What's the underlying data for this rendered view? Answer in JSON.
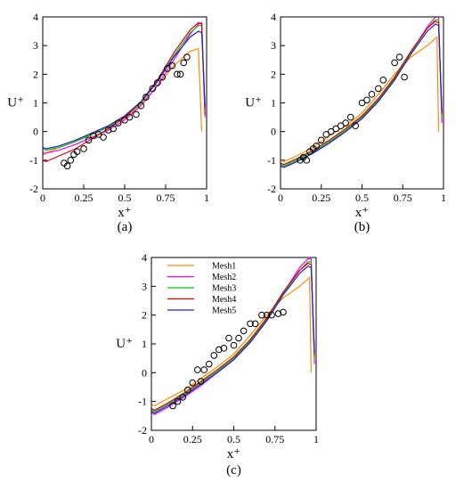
{
  "chart_data": [
    {
      "type": "line",
      "panel_label": "(a)",
      "xlabel": "x⁺",
      "ylabel": "U⁺",
      "xlim": [
        0,
        1
      ],
      "ylim": [
        -2,
        4
      ],
      "xticks": [
        "0",
        "0.25",
        "0.5",
        "0.75",
        "1"
      ],
      "yticks": [
        "-2",
        "-1",
        "0",
        "1",
        "2",
        "3",
        "4"
      ],
      "grid": false,
      "series": [
        {
          "name": "Mesh1",
          "color": "#ff8c00",
          "x": [
            0,
            0.02,
            0.1,
            0.2,
            0.3,
            0.4,
            0.5,
            0.6,
            0.7,
            0.8,
            0.9,
            0.95,
            0.97
          ],
          "y": [
            -0.7,
            -0.75,
            -0.55,
            -0.35,
            -0.05,
            0.2,
            0.45,
            0.95,
            1.6,
            2.3,
            2.8,
            2.9,
            0
          ]
        },
        {
          "name": "Mesh2",
          "color": "#ff00ff",
          "x": [
            0,
            0.02,
            0.1,
            0.2,
            0.3,
            0.4,
            0.5,
            0.6,
            0.7,
            0.8,
            0.9,
            0.95,
            0.97,
            0.99
          ],
          "y": [
            -0.8,
            -0.75,
            -0.65,
            -0.45,
            -0.2,
            0.05,
            0.4,
            0.9,
            1.6,
            2.5,
            3.4,
            3.75,
            3.8,
            0.5
          ]
        },
        {
          "name": "Mesh3",
          "color": "#00c800",
          "x": [
            0,
            0.02,
            0.1,
            0.2,
            0.3,
            0.4,
            0.5,
            0.6,
            0.7,
            0.8,
            0.9,
            0.95,
            0.97,
            0.99
          ],
          "y": [
            -0.6,
            -0.65,
            -0.55,
            -0.35,
            -0.1,
            0.15,
            0.5,
            1.0,
            1.75,
            2.65,
            3.45,
            3.7,
            3.7,
            0.8
          ]
        },
        {
          "name": "Mesh4",
          "color": "#e00000",
          "x": [
            0,
            0.02,
            0.1,
            0.2,
            0.3,
            0.4,
            0.5,
            0.6,
            0.7,
            0.8,
            0.9,
            0.95,
            0.97,
            0.99
          ],
          "y": [
            -1.0,
            -1.05,
            -0.85,
            -0.6,
            -0.25,
            0.1,
            0.5,
            1.05,
            1.8,
            2.75,
            3.55,
            3.8,
            3.75,
            0.6
          ]
        },
        {
          "name": "Mesh5",
          "color": "#2020e0",
          "x": [
            0,
            0.02,
            0.1,
            0.2,
            0.3,
            0.4,
            0.5,
            0.6,
            0.7,
            0.8,
            0.9,
            0.95,
            0.97,
            0.99
          ],
          "y": [
            -0.55,
            -0.6,
            -0.5,
            -0.3,
            -0.05,
            0.2,
            0.55,
            1.05,
            1.75,
            2.6,
            3.3,
            3.5,
            3.45,
            0.9
          ]
        }
      ],
      "markers": {
        "x": [
          0.13,
          0.15,
          0.17,
          0.19,
          0.21,
          0.25,
          0.28,
          0.31,
          0.34,
          0.37,
          0.4,
          0.43,
          0.46,
          0.5,
          0.53,
          0.57,
          0.6,
          0.63,
          0.67,
          0.7,
          0.73,
          0.76,
          0.79,
          0.82,
          0.84,
          0.86,
          0.88
        ],
        "y": [
          -1.1,
          -1.2,
          -1.0,
          -0.8,
          -0.7,
          -0.6,
          -0.3,
          -0.15,
          -0.1,
          -0.2,
          0.05,
          0.1,
          0.3,
          0.4,
          0.5,
          0.6,
          0.9,
          1.2,
          1.5,
          1.7,
          1.9,
          2.2,
          2.3,
          2.0,
          2.0,
          2.4,
          2.6
        ]
      }
    },
    {
      "type": "line",
      "panel_label": "(b)",
      "xlabel": "x⁺",
      "ylabel": "U⁺",
      "xlim": [
        0,
        1
      ],
      "ylim": [
        -2,
        4
      ],
      "xticks": [
        "0",
        "0.25",
        "0.5",
        "0.75",
        "1"
      ],
      "yticks": [
        "-2",
        "-1",
        "0",
        "1",
        "2",
        "3",
        "4"
      ],
      "grid": false,
      "series": [
        {
          "name": "Mesh1",
          "color": "#ff8c00",
          "x": [
            0,
            0.02,
            0.1,
            0.2,
            0.3,
            0.4,
            0.5,
            0.6,
            0.7,
            0.8,
            0.9,
            0.96,
            0.97
          ],
          "y": [
            -1.0,
            -1.05,
            -0.85,
            -0.55,
            -0.15,
            0.2,
            0.65,
            1.3,
            2.0,
            2.6,
            3.0,
            3.3,
            0
          ]
        },
        {
          "name": "Mesh2",
          "color": "#ff00ff",
          "x": [
            0,
            0.02,
            0.1,
            0.2,
            0.3,
            0.4,
            0.5,
            0.6,
            0.7,
            0.8,
            0.9,
            0.95,
            0.97,
            0.99
          ],
          "y": [
            -1.2,
            -1.25,
            -1.05,
            -0.75,
            -0.4,
            0.0,
            0.45,
            1.05,
            1.8,
            2.75,
            3.65,
            4.0,
            4.0,
            0.3
          ]
        },
        {
          "name": "Mesh3",
          "color": "#00c800",
          "x": [
            0,
            0.02,
            0.1,
            0.2,
            0.3,
            0.4,
            0.5,
            0.6,
            0.7,
            0.8,
            0.9,
            0.95,
            0.97,
            0.99
          ],
          "y": [
            -1.15,
            -1.2,
            -1.0,
            -0.7,
            -0.35,
            0.05,
            0.5,
            1.1,
            1.85,
            2.75,
            3.6,
            3.9,
            3.9,
            0.5
          ]
        },
        {
          "name": "Mesh4",
          "color": "#e00000",
          "x": [
            0,
            0.02,
            0.1,
            0.2,
            0.3,
            0.4,
            0.5,
            0.6,
            0.7,
            0.8,
            0.9,
            0.95,
            0.97,
            0.99
          ],
          "y": [
            -1.1,
            -1.15,
            -0.95,
            -0.65,
            -0.3,
            0.1,
            0.55,
            1.15,
            1.9,
            2.8,
            3.6,
            3.85,
            3.8,
            0.6
          ]
        },
        {
          "name": "Mesh5",
          "color": "#2020e0",
          "x": [
            0,
            0.02,
            0.1,
            0.2,
            0.3,
            0.4,
            0.5,
            0.6,
            0.7,
            0.8,
            0.9,
            0.95,
            0.97,
            0.99
          ],
          "y": [
            -1.2,
            -1.25,
            -1.05,
            -0.75,
            -0.4,
            0.0,
            0.45,
            1.05,
            1.8,
            2.7,
            3.5,
            3.75,
            3.7,
            0.7
          ]
        }
      ],
      "markers": {
        "x": [
          0.12,
          0.14,
          0.16,
          0.18,
          0.2,
          0.22,
          0.25,
          0.28,
          0.31,
          0.34,
          0.37,
          0.4,
          0.43,
          0.46,
          0.5,
          0.53,
          0.56,
          0.6,
          0.63,
          0.7,
          0.73,
          0.76
        ],
        "y": [
          -1.0,
          -0.9,
          -1.0,
          -0.7,
          -0.6,
          -0.5,
          -0.3,
          -0.1,
          0.0,
          0.1,
          0.2,
          0.3,
          0.5,
          0.2,
          1.0,
          1.1,
          1.3,
          1.5,
          1.8,
          2.4,
          2.6,
          1.9
        ]
      }
    },
    {
      "type": "line",
      "panel_label": "(c)",
      "xlabel": "x⁺",
      "ylabel": "U⁺",
      "xlim": [
        0,
        1
      ],
      "ylim": [
        -2,
        4
      ],
      "xticks": [
        "0",
        "0.25",
        "0.5",
        "0.75",
        "1"
      ],
      "yticks": [
        "-2",
        "-1",
        "0",
        "1",
        "2",
        "3",
        "4"
      ],
      "grid": false,
      "legend": "top-left",
      "series": [
        {
          "name": "Mesh1",
          "color": "#ff8c00",
          "x": [
            0,
            0.02,
            0.1,
            0.2,
            0.3,
            0.4,
            0.5,
            0.6,
            0.7,
            0.8,
            0.9,
            0.96,
            0.97
          ],
          "y": [
            -1.1,
            -1.15,
            -0.9,
            -0.6,
            -0.2,
            0.2,
            0.65,
            1.3,
            2.0,
            2.6,
            3.0,
            3.3,
            0
          ]
        },
        {
          "name": "Mesh2",
          "color": "#ff00ff",
          "x": [
            0,
            0.02,
            0.1,
            0.2,
            0.3,
            0.4,
            0.5,
            0.6,
            0.7,
            0.8,
            0.9,
            0.95,
            0.97,
            0.99
          ],
          "y": [
            -1.4,
            -1.45,
            -1.2,
            -0.85,
            -0.45,
            0.0,
            0.45,
            1.05,
            1.8,
            2.75,
            3.65,
            3.95,
            3.95,
            0.3
          ]
        },
        {
          "name": "Mesh3",
          "color": "#00c800",
          "x": [
            0,
            0.02,
            0.1,
            0.2,
            0.3,
            0.4,
            0.5,
            0.6,
            0.7,
            0.8,
            0.9,
            0.95,
            0.97,
            0.99
          ],
          "y": [
            -1.3,
            -1.35,
            -1.1,
            -0.75,
            -0.35,
            0.05,
            0.5,
            1.1,
            1.85,
            2.75,
            3.55,
            3.85,
            3.85,
            0.5
          ]
        },
        {
          "name": "Mesh4",
          "color": "#e00000",
          "x": [
            0,
            0.02,
            0.1,
            0.2,
            0.3,
            0.4,
            0.5,
            0.6,
            0.7,
            0.8,
            0.9,
            0.95,
            0.97,
            0.99
          ],
          "y": [
            -1.25,
            -1.3,
            -1.05,
            -0.7,
            -0.3,
            0.1,
            0.55,
            1.15,
            1.9,
            2.8,
            3.55,
            3.8,
            3.75,
            0.6
          ]
        },
        {
          "name": "Mesh5",
          "color": "#2020e0",
          "x": [
            0,
            0.02,
            0.1,
            0.2,
            0.3,
            0.4,
            0.5,
            0.6,
            0.7,
            0.8,
            0.9,
            0.95,
            0.97,
            0.99
          ],
          "y": [
            -1.35,
            -1.4,
            -1.15,
            -0.8,
            -0.4,
            0.0,
            0.45,
            1.05,
            1.8,
            2.7,
            3.45,
            3.7,
            3.65,
            0.7
          ]
        }
      ],
      "markers": {
        "x": [
          0.13,
          0.16,
          0.19,
          0.22,
          0.25,
          0.28,
          0.3,
          0.32,
          0.35,
          0.38,
          0.41,
          0.44,
          0.47,
          0.5,
          0.53,
          0.56,
          0.6,
          0.63,
          0.67,
          0.7,
          0.73,
          0.77,
          0.8
        ],
        "y": [
          -1.15,
          -1.0,
          -0.85,
          -0.6,
          -0.35,
          0.1,
          -0.3,
          0.1,
          0.3,
          0.6,
          0.8,
          0.85,
          1.2,
          0.95,
          1.2,
          1.45,
          1.7,
          1.7,
          2.0,
          2.0,
          2.0,
          2.05,
          2.1
        ]
      }
    }
  ]
}
